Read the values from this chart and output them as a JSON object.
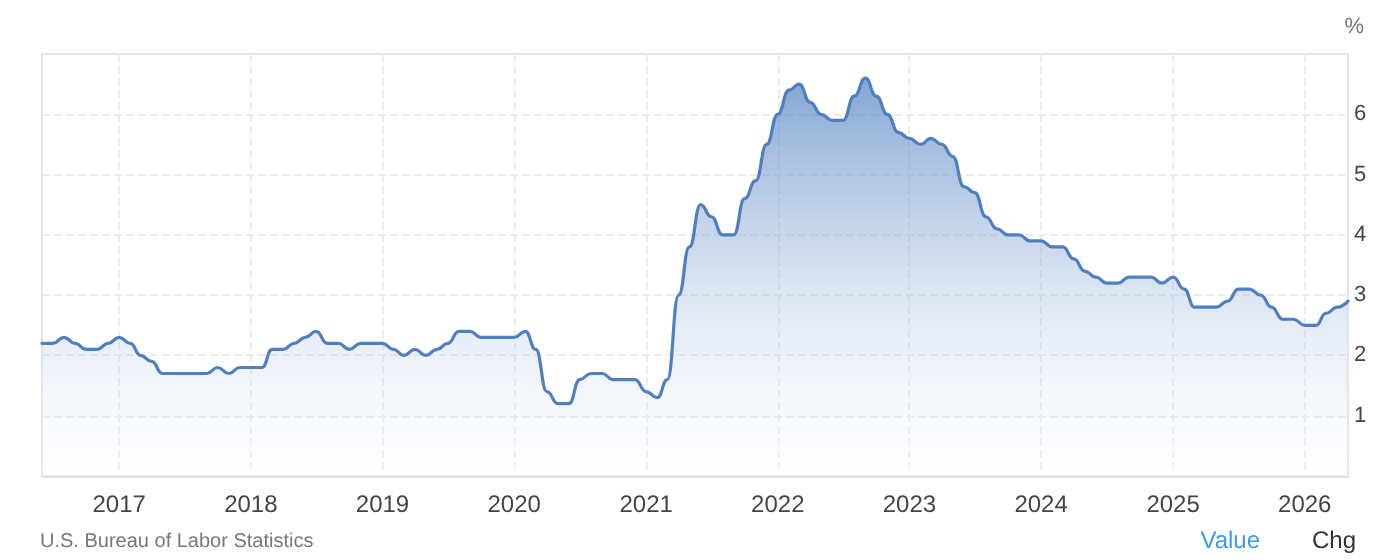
{
  "chart_data": {
    "type": "area",
    "ylabel": "%",
    "x": [
      "2016-06",
      "2016-07",
      "2016-08",
      "2016-09",
      "2016-10",
      "2016-11",
      "2016-12",
      "2017-01",
      "2017-02",
      "2017-03",
      "2017-04",
      "2017-05",
      "2017-06",
      "2017-07",
      "2017-08",
      "2017-09",
      "2017-10",
      "2017-11",
      "2017-12",
      "2018-01",
      "2018-02",
      "2018-03",
      "2018-04",
      "2018-05",
      "2018-06",
      "2018-07",
      "2018-08",
      "2018-09",
      "2018-10",
      "2018-11",
      "2018-12",
      "2019-01",
      "2019-02",
      "2019-03",
      "2019-04",
      "2019-05",
      "2019-06",
      "2019-07",
      "2019-08",
      "2019-09",
      "2019-10",
      "2019-11",
      "2019-12",
      "2020-01",
      "2020-02",
      "2020-03",
      "2020-04",
      "2020-05",
      "2020-06",
      "2020-07",
      "2020-08",
      "2020-09",
      "2020-10",
      "2020-11",
      "2020-12",
      "2021-01",
      "2021-02",
      "2021-03",
      "2021-04",
      "2021-05",
      "2021-06",
      "2021-07",
      "2021-08",
      "2021-09",
      "2021-10",
      "2021-11",
      "2021-12",
      "2022-01",
      "2022-02",
      "2022-03",
      "2022-04",
      "2022-05",
      "2022-06",
      "2022-07",
      "2022-08",
      "2022-09",
      "2022-10",
      "2022-11",
      "2022-12",
      "2023-01",
      "2023-02",
      "2023-03",
      "2023-04",
      "2023-05",
      "2023-06",
      "2023-07",
      "2023-08",
      "2023-09",
      "2023-10",
      "2023-11",
      "2023-12",
      "2024-01",
      "2024-02",
      "2024-03",
      "2024-04",
      "2024-05",
      "2024-06",
      "2024-07",
      "2024-08",
      "2024-09",
      "2024-10",
      "2024-11",
      "2024-12",
      "2025-01",
      "2025-02",
      "2025-03",
      "2025-04",
      "2025-05",
      "2025-06",
      "2025-07",
      "2025-08",
      "2025-09",
      "2025-10",
      "2025-11",
      "2025-12",
      "2026-01",
      "2026-02",
      "2026-03",
      "2026-04",
      "2026-05"
    ],
    "series": [
      {
        "color": "#4f7fc0",
        "values": [
          2.2,
          2.2,
          2.3,
          2.2,
          2.1,
          2.1,
          2.2,
          2.3,
          2.2,
          2.0,
          1.9,
          1.7,
          1.7,
          1.7,
          1.7,
          1.7,
          1.8,
          1.7,
          1.8,
          1.8,
          1.8,
          2.1,
          2.1,
          2.2,
          2.3,
          2.4,
          2.2,
          2.2,
          2.1,
          2.2,
          2.2,
          2.2,
          2.1,
          2.0,
          2.1,
          2.0,
          2.1,
          2.2,
          2.4,
          2.4,
          2.3,
          2.3,
          2.3,
          2.3,
          2.4,
          2.1,
          1.4,
          1.2,
          1.2,
          1.6,
          1.7,
          1.7,
          1.6,
          1.6,
          1.6,
          1.4,
          1.3,
          1.6,
          3.0,
          3.8,
          4.5,
          4.3,
          4.0,
          4.0,
          4.6,
          4.9,
          5.5,
          6.0,
          6.4,
          6.5,
          6.2,
          6.0,
          5.9,
          5.9,
          6.3,
          6.6,
          6.3,
          6.0,
          5.7,
          5.6,
          5.5,
          5.6,
          5.5,
          5.3,
          4.8,
          4.7,
          4.3,
          4.1,
          4.0,
          4.0,
          3.9,
          3.9,
          3.8,
          3.8,
          3.6,
          3.4,
          3.3,
          3.2,
          3.2,
          3.3,
          3.3,
          3.3,
          3.2,
          3.3,
          3.1,
          2.8,
          2.8,
          2.8,
          2.9,
          3.1,
          3.1,
          3.0,
          2.8,
          2.6,
          2.6,
          2.5,
          2.5,
          2.7,
          2.8,
          2.9
        ]
      }
    ],
    "xlim": [
      "2016-06",
      "2026-05"
    ],
    "xticks": [
      "2017",
      "2018",
      "2019",
      "2020",
      "2021",
      "2022",
      "2023",
      "2024",
      "2025",
      "2026"
    ],
    "ylim": [
      0,
      7
    ],
    "yticks": [
      1,
      2,
      3,
      4,
      5,
      6
    ],
    "grid": true,
    "marker": "none",
    "line_style": "solid",
    "annotations": [
      "U.S. Bureau of Labor Statistics",
      "Value",
      "Chg"
    ]
  }
}
